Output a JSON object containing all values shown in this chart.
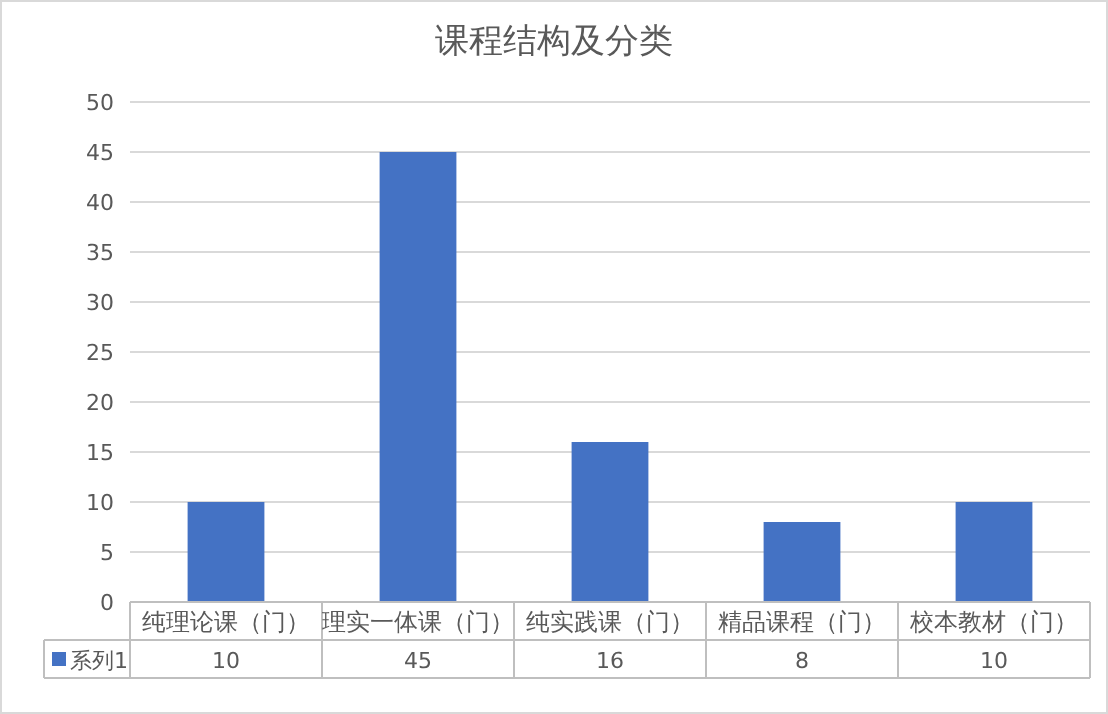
{
  "chart_data": {
    "type": "bar",
    "title": "课程结构及分类",
    "categories": [
      "纯理论课（门）",
      "理实一体课（门）",
      "纯实践课（门）",
      "精品课程（门）",
      "校本教材（门）"
    ],
    "series": [
      {
        "name": "系列1",
        "color": "#4472c4",
        "values": [
          10,
          45,
          16,
          8,
          10
        ]
      }
    ],
    "ylim": [
      0,
      50
    ],
    "yticks": [
      0,
      5,
      10,
      15,
      20,
      25,
      30,
      35,
      40,
      45,
      50
    ],
    "grid": "y",
    "legend": "bottom",
    "data_labels": true
  }
}
